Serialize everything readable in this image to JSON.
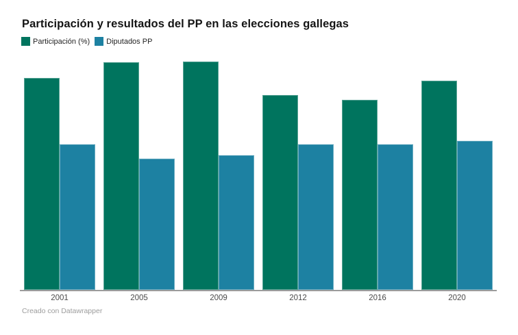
{
  "header": {
    "title": "Participación y resultados del PP en las elecciones gallegas"
  },
  "legend": {
    "items": [
      {
        "label": "Participación (%)",
        "color": "#00745e"
      },
      {
        "label": "Diputados PP",
        "color": "#1d81a2"
      }
    ]
  },
  "chart_data": {
    "type": "bar",
    "grouped": true,
    "title": "Participación y resultados del PP en las elecciones gallegas",
    "categories": [
      "2001",
      "2005",
      "2009",
      "2012",
      "2016",
      "2020"
    ],
    "series": [
      {
        "name": "Participación (%)",
        "color": "#00745e",
        "values": [
          59.7,
          64.2,
          64.4,
          54.9,
          53.6,
          58.9
        ]
      },
      {
        "name": "Diputados PP",
        "color": "#1d81a2",
        "values": [
          41,
          37,
          38,
          41,
          41,
          42
        ]
      }
    ],
    "xlabel": "",
    "ylabel": "",
    "ylim": [
      0,
      65.3
    ],
    "grid": false,
    "legend_position": "top-left",
    "baseline_color": "#9b9b9b",
    "tick_label_color": "#4a4a4a"
  },
  "footer": {
    "credit": "Creado con Datawrapper"
  }
}
